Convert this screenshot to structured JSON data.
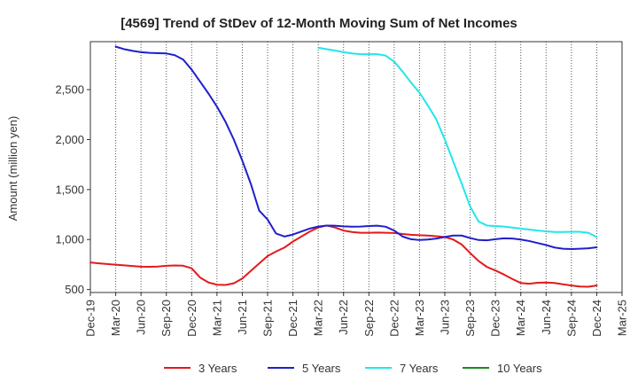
{
  "chart_data": {
    "type": "line",
    "title": "[4569]  Trend of StDev of 12-Month Moving Sum of Net Incomes",
    "xlabel": "",
    "ylabel": "Amount (million yen)",
    "ylim": [
      470,
      2980
    ],
    "yticks": [
      500,
      1000,
      1500,
      2000,
      2500
    ],
    "ytick_labels": [
      "500",
      "1,000",
      "1,500",
      "2,000",
      "2,500"
    ],
    "x_start": "2019-12",
    "x_end": "2025-03",
    "xtick_labels": [
      "Dec-19",
      "Mar-20",
      "Jun-20",
      "Sep-20",
      "Dec-20",
      "Mar-21",
      "Jun-21",
      "Sep-21",
      "Dec-21",
      "Mar-22",
      "Jun-22",
      "Sep-22",
      "Dec-22",
      "Mar-23",
      "Jun-23",
      "Sep-23",
      "Dec-23",
      "Mar-24",
      "Jun-24",
      "Sep-24",
      "Dec-24",
      "Mar-25"
    ],
    "grid": "vertical-dotted",
    "legend_position": "bottom",
    "series": [
      {
        "name": "3 Years",
        "color": "#e31a1c",
        "points": [
          [
            "2019-12",
            770
          ],
          [
            "2020-01",
            762
          ],
          [
            "2020-02",
            755
          ],
          [
            "2020-03",
            748
          ],
          [
            "2020-04",
            742
          ],
          [
            "2020-05",
            735
          ],
          [
            "2020-06",
            728
          ],
          [
            "2020-07",
            727
          ],
          [
            "2020-08",
            730
          ],
          [
            "2020-09",
            737
          ],
          [
            "2020-10",
            740
          ],
          [
            "2020-11",
            738
          ],
          [
            "2020-12",
            712
          ],
          [
            "2021-01",
            620
          ],
          [
            "2021-02",
            570
          ],
          [
            "2021-03",
            548
          ],
          [
            "2021-04",
            545
          ],
          [
            "2021-05",
            562
          ],
          [
            "2021-06",
            610
          ],
          [
            "2021-07",
            685
          ],
          [
            "2021-08",
            760
          ],
          [
            "2021-09",
            835
          ],
          [
            "2021-10",
            880
          ],
          [
            "2021-11",
            920
          ],
          [
            "2021-12",
            980
          ],
          [
            "2022-01",
            1030
          ],
          [
            "2022-02",
            1080
          ],
          [
            "2022-03",
            1120
          ],
          [
            "2022-04",
            1140
          ],
          [
            "2022-05",
            1120
          ],
          [
            "2022-06",
            1090
          ],
          [
            "2022-07",
            1075
          ],
          [
            "2022-08",
            1068
          ],
          [
            "2022-09",
            1068
          ],
          [
            "2022-10",
            1070
          ],
          [
            "2022-11",
            1068
          ],
          [
            "2022-12",
            1065
          ],
          [
            "2023-01",
            1055
          ],
          [
            "2023-02",
            1048
          ],
          [
            "2023-03",
            1043
          ],
          [
            "2023-04",
            1040
          ],
          [
            "2023-05",
            1033
          ],
          [
            "2023-06",
            1025
          ],
          [
            "2023-07",
            1000
          ],
          [
            "2023-08",
            950
          ],
          [
            "2023-09",
            865
          ],
          [
            "2023-10",
            785
          ],
          [
            "2023-11",
            725
          ],
          [
            "2023-12",
            690
          ],
          [
            "2024-01",
            650
          ],
          [
            "2024-02",
            605
          ],
          [
            "2024-03",
            565
          ],
          [
            "2024-04",
            558
          ],
          [
            "2024-05",
            568
          ],
          [
            "2024-06",
            570
          ],
          [
            "2024-07",
            565
          ],
          [
            "2024-08",
            552
          ],
          [
            "2024-09",
            540
          ],
          [
            "2024-10",
            530
          ],
          [
            "2024-11",
            528
          ],
          [
            "2024-12",
            540
          ]
        ]
      },
      {
        "name": "5 Years",
        "color": "#1f1fcc",
        "points": [
          [
            "2020-03",
            2930
          ],
          [
            "2020-04",
            2905
          ],
          [
            "2020-05",
            2888
          ],
          [
            "2020-06",
            2875
          ],
          [
            "2020-07",
            2868
          ],
          [
            "2020-08",
            2865
          ],
          [
            "2020-09",
            2862
          ],
          [
            "2020-10",
            2845
          ],
          [
            "2020-11",
            2800
          ],
          [
            "2020-12",
            2700
          ],
          [
            "2021-01",
            2580
          ],
          [
            "2021-02",
            2460
          ],
          [
            "2021-03",
            2330
          ],
          [
            "2021-04",
            2180
          ],
          [
            "2021-05",
            2000
          ],
          [
            "2021-06",
            1790
          ],
          [
            "2021-07",
            1560
          ],
          [
            "2021-08",
            1290
          ],
          [
            "2021-09",
            1200
          ],
          [
            "2021-10",
            1060
          ],
          [
            "2021-11",
            1030
          ],
          [
            "2021-12",
            1050
          ],
          [
            "2022-01",
            1080
          ],
          [
            "2022-02",
            1110
          ],
          [
            "2022-03",
            1130
          ],
          [
            "2022-04",
            1140
          ],
          [
            "2022-05",
            1138
          ],
          [
            "2022-06",
            1132
          ],
          [
            "2022-07",
            1128
          ],
          [
            "2022-08",
            1130
          ],
          [
            "2022-09",
            1135
          ],
          [
            "2022-10",
            1138
          ],
          [
            "2022-11",
            1128
          ],
          [
            "2022-12",
            1090
          ],
          [
            "2023-01",
            1030
          ],
          [
            "2023-02",
            1003
          ],
          [
            "2023-03",
            995
          ],
          [
            "2023-04",
            1000
          ],
          [
            "2023-05",
            1010
          ],
          [
            "2023-06",
            1025
          ],
          [
            "2023-07",
            1040
          ],
          [
            "2023-08",
            1040
          ],
          [
            "2023-09",
            1015
          ],
          [
            "2023-10",
            995
          ],
          [
            "2023-11",
            992
          ],
          [
            "2023-12",
            1003
          ],
          [
            "2024-01",
            1012
          ],
          [
            "2024-02",
            1010
          ],
          [
            "2024-03",
            1000
          ],
          [
            "2024-04",
            985
          ],
          [
            "2024-05",
            965
          ],
          [
            "2024-06",
            945
          ],
          [
            "2024-07",
            920
          ],
          [
            "2024-08",
            908
          ],
          [
            "2024-09",
            905
          ],
          [
            "2024-10",
            908
          ],
          [
            "2024-11",
            912
          ],
          [
            "2024-12",
            922
          ]
        ]
      },
      {
        "name": "7 Years",
        "color": "#22e6ea",
        "points": [
          [
            "2022-03",
            2920
          ],
          [
            "2022-04",
            2905
          ],
          [
            "2022-05",
            2890
          ],
          [
            "2022-06",
            2875
          ],
          [
            "2022-07",
            2862
          ],
          [
            "2022-08",
            2855
          ],
          [
            "2022-09",
            2855
          ],
          [
            "2022-10",
            2855
          ],
          [
            "2022-11",
            2840
          ],
          [
            "2022-12",
            2780
          ],
          [
            "2023-01",
            2680
          ],
          [
            "2023-02",
            2570
          ],
          [
            "2023-03",
            2470
          ],
          [
            "2023-04",
            2340
          ],
          [
            "2023-05",
            2200
          ],
          [
            "2023-06",
            2000
          ],
          [
            "2023-07",
            1780
          ],
          [
            "2023-08",
            1560
          ],
          [
            "2023-09",
            1330
          ],
          [
            "2023-10",
            1180
          ],
          [
            "2023-11",
            1140
          ],
          [
            "2023-12",
            1135
          ],
          [
            "2024-01",
            1130
          ],
          [
            "2024-02",
            1120
          ],
          [
            "2024-03",
            1110
          ],
          [
            "2024-04",
            1100
          ],
          [
            "2024-05",
            1090
          ],
          [
            "2024-06",
            1082
          ],
          [
            "2024-07",
            1075
          ],
          [
            "2024-08",
            1075
          ],
          [
            "2024-09",
            1078
          ],
          [
            "2024-10",
            1078
          ],
          [
            "2024-11",
            1068
          ],
          [
            "2024-12",
            1025
          ]
        ]
      },
      {
        "name": "10 Years",
        "color": "#1a8c1a",
        "points": []
      }
    ]
  }
}
